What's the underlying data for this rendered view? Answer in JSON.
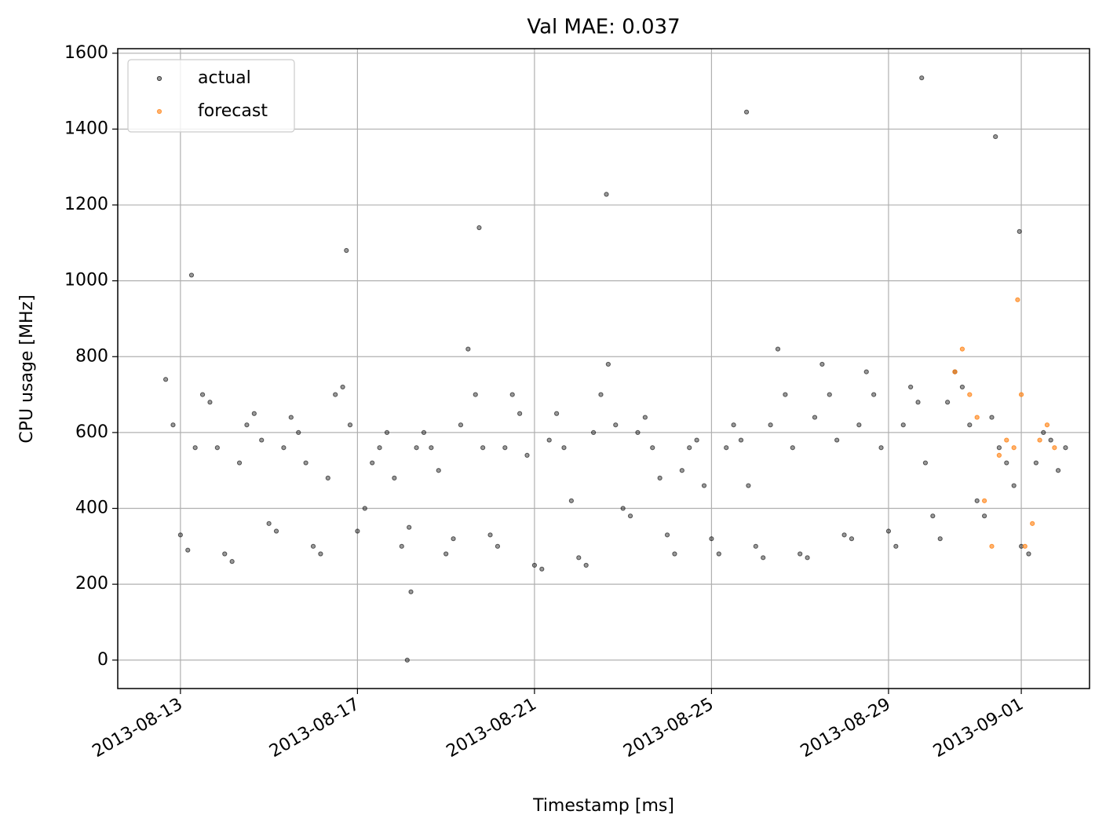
{
  "chart_data": {
    "type": "scatter",
    "title": "Val MAE: 0.037",
    "x_label": "Timestamp [ms]",
    "y_label": "CPU usage [MHz]",
    "xlim": [
      "2013-08-11T14:00",
      "2013-09-02T13:00"
    ],
    "xticks": [
      "2013-08-13",
      "2013-08-17",
      "2013-08-21",
      "2013-08-25",
      "2013-08-29",
      "2013-09-01"
    ],
    "ylim": [
      -75,
      1612
    ],
    "yticks": [
      0,
      200,
      400,
      600,
      800,
      1000,
      1200,
      1400,
      1600
    ],
    "grid": true,
    "legend": "upper left",
    "series": [
      {
        "name": "actual",
        "color": "#000000",
        "x": [
          "2013-08-12T16:00",
          "2013-08-12T20:00",
          "2013-08-13T00:00",
          "2013-08-13T04:00",
          "2013-08-13T08:00",
          "2013-08-13T12:00",
          "2013-08-13T16:00",
          "2013-08-13T20:00",
          "2013-08-14T00:00",
          "2013-08-14T04:00",
          "2013-08-14T08:00",
          "2013-08-14T12:00",
          "2013-08-14T16:00",
          "2013-08-14T20:00",
          "2013-08-15T00:00",
          "2013-08-15T04:00",
          "2013-08-15T08:00",
          "2013-08-15T12:00",
          "2013-08-15T16:00",
          "2013-08-15T20:00",
          "2013-08-16T00:00",
          "2013-08-16T04:00",
          "2013-08-16T08:00",
          "2013-08-16T12:00",
          "2013-08-16T16:00",
          "2013-08-16T20:00",
          "2013-08-17T00:00",
          "2013-08-17T04:00",
          "2013-08-17T08:00",
          "2013-08-17T12:00",
          "2013-08-17T16:00",
          "2013-08-17T20:00",
          "2013-08-18T00:00",
          "2013-08-18T04:00",
          "2013-08-18T08:00",
          "2013-08-18T12:00",
          "2013-08-18T16:00",
          "2013-08-18T20:00",
          "2013-08-19T00:00",
          "2013-08-19T04:00",
          "2013-08-19T08:00",
          "2013-08-19T12:00",
          "2013-08-19T16:00",
          "2013-08-19T20:00",
          "2013-08-20T00:00",
          "2013-08-20T04:00",
          "2013-08-20T08:00",
          "2013-08-20T12:00",
          "2013-08-20T16:00",
          "2013-08-20T20:00",
          "2013-08-21T00:00",
          "2013-08-21T04:00",
          "2013-08-21T08:00",
          "2013-08-21T12:00",
          "2013-08-21T16:00",
          "2013-08-21T20:00",
          "2013-08-22T00:00",
          "2013-08-22T04:00",
          "2013-08-22T08:00",
          "2013-08-22T12:00",
          "2013-08-22T16:00",
          "2013-08-22T20:00",
          "2013-08-23T00:00",
          "2013-08-23T04:00",
          "2013-08-23T08:00",
          "2013-08-23T12:00",
          "2013-08-23T16:00",
          "2013-08-23T20:00",
          "2013-08-24T00:00",
          "2013-08-24T04:00",
          "2013-08-24T08:00",
          "2013-08-24T12:00",
          "2013-08-24T16:00",
          "2013-08-24T20:00",
          "2013-08-25T00:00",
          "2013-08-25T04:00",
          "2013-08-25T08:00",
          "2013-08-25T12:00",
          "2013-08-25T16:00",
          "2013-08-25T20:00",
          "2013-08-26T00:00",
          "2013-08-26T04:00",
          "2013-08-26T08:00",
          "2013-08-26T12:00",
          "2013-08-26T16:00",
          "2013-08-26T20:00",
          "2013-08-27T00:00",
          "2013-08-27T04:00",
          "2013-08-27T08:00",
          "2013-08-27T12:00",
          "2013-08-27T16:00",
          "2013-08-27T20:00",
          "2013-08-28T00:00",
          "2013-08-28T04:00",
          "2013-08-28T08:00",
          "2013-08-28T12:00",
          "2013-08-28T16:00",
          "2013-08-28T20:00",
          "2013-08-29T00:00",
          "2013-08-29T04:00",
          "2013-08-29T08:00",
          "2013-08-29T12:00",
          "2013-08-29T16:00",
          "2013-08-29T20:00",
          "2013-08-30T00:00",
          "2013-08-30T04:00",
          "2013-08-30T08:00",
          "2013-08-30T12:00",
          "2013-08-30T16:00",
          "2013-08-30T20:00",
          "2013-08-31T00:00",
          "2013-08-31T04:00",
          "2013-08-31T08:00",
          "2013-08-31T12:00",
          "2013-08-31T16:00",
          "2013-08-31T20:00",
          "2013-09-01T00:00",
          "2013-09-01T04:00",
          "2013-09-01T08:00",
          "2013-09-01T12:00",
          "2013-09-01T16:00",
          "2013-09-01T20:00",
          "2013-09-02T00:00",
          "2013-08-18T03:00",
          "2013-08-18T05:00",
          "2013-08-22T15:00",
          "2013-08-25T19:00",
          "2013-08-29T18:00",
          "2013-08-31T10:00",
          "2013-08-31T23:00",
          "2013-08-16T18:00",
          "2013-08-19T18:00",
          "2013-08-13T06:00"
        ],
        "values": [
          740,
          620,
          330,
          290,
          560,
          700,
          680,
          560,
          280,
          260,
          520,
          620,
          650,
          580,
          360,
          340,
          560,
          640,
          600,
          520,
          300,
          280,
          480,
          700,
          720,
          620,
          340,
          400,
          520,
          560,
          600,
          480,
          300,
          350,
          560,
          600,
          560,
          500,
          280,
          320,
          620,
          820,
          700,
          560,
          330,
          300,
          560,
          700,
          650,
          540,
          250,
          240,
          580,
          650,
          560,
          420,
          270,
          250,
          600,
          700,
          780,
          620,
          400,
          380,
          600,
          640,
          560,
          480,
          330,
          280,
          500,
          560,
          580,
          460,
          320,
          280,
          560,
          620,
          580,
          460,
          300,
          270,
          620,
          820,
          700,
          560,
          280,
          270,
          640,
          780,
          700,
          580,
          330,
          320,
          620,
          760,
          700,
          560,
          340,
          300,
          620,
          720,
          680,
          520,
          380,
          320,
          680,
          760,
          720,
          620,
          420,
          380,
          640,
          560,
          520,
          460,
          300,
          280,
          520,
          600,
          580,
          500,
          560,
          0,
          180,
          1228,
          1445,
          1535,
          1380,
          1130,
          1080,
          1140,
          1015
        ]
      },
      {
        "name": "forecast",
        "color": "#ff7f0e",
        "x": [
          "2013-08-30T12:00",
          "2013-08-30T16:00",
          "2013-08-30T20:00",
          "2013-08-31T00:00",
          "2013-08-31T04:00",
          "2013-08-31T08:00",
          "2013-08-31T12:00",
          "2013-08-31T16:00",
          "2013-08-31T20:00",
          "2013-08-31T22:00",
          "2013-09-01T00:00",
          "2013-09-01T02:00",
          "2013-09-01T06:00",
          "2013-09-01T10:00",
          "2013-09-01T14:00",
          "2013-09-01T18:00"
        ],
        "values": [
          760,
          820,
          700,
          640,
          420,
          300,
          540,
          580,
          560,
          950,
          700,
          300,
          360,
          580,
          620,
          560
        ]
      }
    ]
  }
}
